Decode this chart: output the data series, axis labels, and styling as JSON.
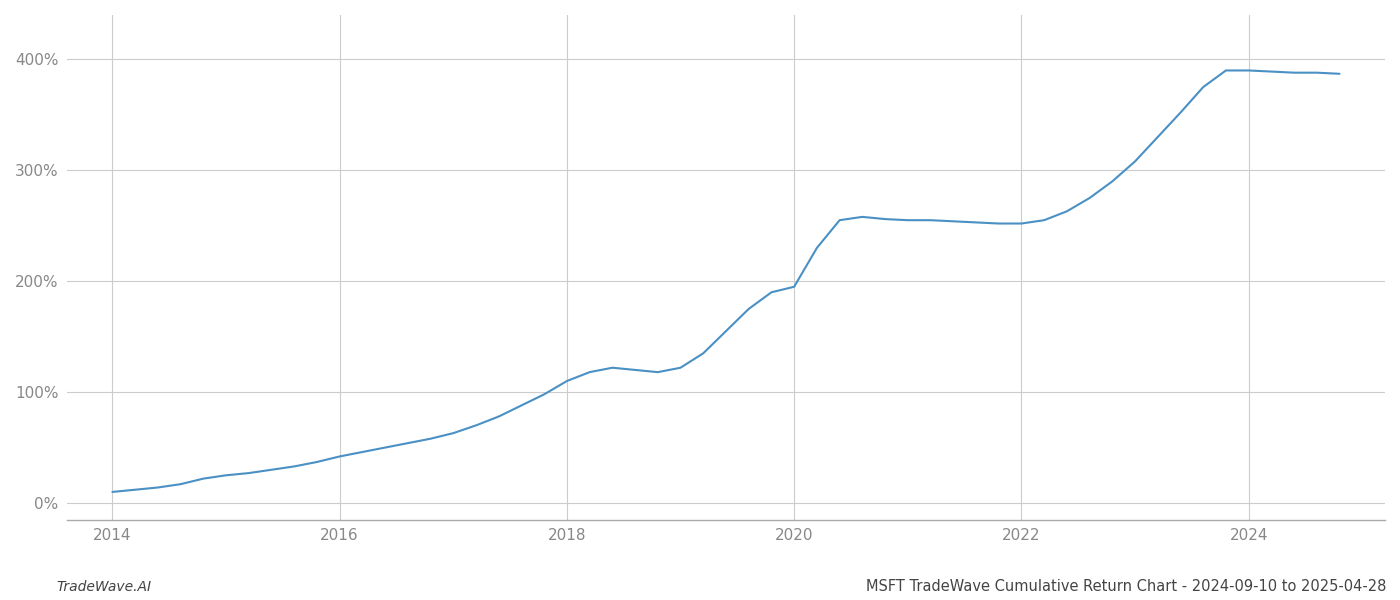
{
  "title": "MSFT TradeWave Cumulative Return Chart - 2024-09-10 to 2025-04-28",
  "watermark": "TradeWave.AI",
  "line_color": "#4a90c4",
  "line_width": 1.5,
  "background_color": "#ffffff",
  "grid_color": "#cccccc",
  "x_years": [
    2014.0,
    2014.2,
    2014.4,
    2014.6,
    2014.8,
    2015.0,
    2015.2,
    2015.4,
    2015.6,
    2015.8,
    2016.0,
    2016.2,
    2016.4,
    2016.6,
    2016.8,
    2017.0,
    2017.2,
    2017.4,
    2017.6,
    2017.8,
    2018.0,
    2018.2,
    2018.4,
    2018.6,
    2018.8,
    2019.0,
    2019.2,
    2019.4,
    2019.6,
    2019.8,
    2020.0,
    2020.2,
    2020.4,
    2020.6,
    2020.8,
    2021.0,
    2021.2,
    2021.4,
    2021.6,
    2021.8,
    2022.0,
    2022.2,
    2022.4,
    2022.6,
    2022.8,
    2023.0,
    2023.2,
    2023.4,
    2023.6,
    2023.8,
    2024.0,
    2024.2,
    2024.4,
    2024.6,
    2024.8
  ],
  "y_values": [
    10,
    12,
    14,
    17,
    22,
    25,
    27,
    30,
    33,
    37,
    42,
    46,
    50,
    54,
    58,
    63,
    70,
    78,
    88,
    98,
    110,
    118,
    122,
    120,
    118,
    122,
    135,
    155,
    175,
    190,
    195,
    230,
    255,
    258,
    256,
    255,
    255,
    254,
    253,
    252,
    252,
    255,
    263,
    275,
    290,
    308,
    330,
    352,
    375,
    390,
    390,
    389,
    388,
    388,
    387
  ],
  "xlim": [
    2013.6,
    2025.2
  ],
  "ylim": [
    -15,
    440
  ],
  "yticks": [
    0,
    100,
    200,
    300,
    400
  ],
  "ytick_labels": [
    "0%",
    "100%",
    "200%",
    "300%",
    "400%"
  ],
  "xticks": [
    2014,
    2016,
    2018,
    2020,
    2022,
    2024
  ],
  "xtick_labels": [
    "2014",
    "2016",
    "2018",
    "2020",
    "2022",
    "2024"
  ],
  "tick_color": "#888888",
  "label_fontsize": 11,
  "title_fontsize": 10.5,
  "watermark_fontsize": 10
}
